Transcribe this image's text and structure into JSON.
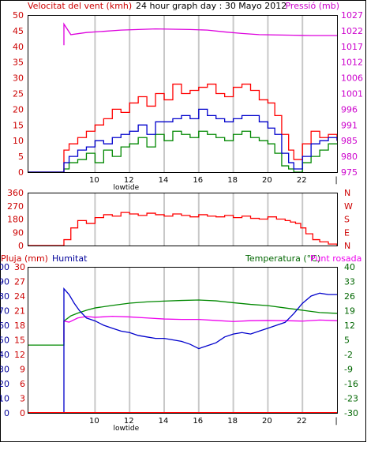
{
  "colors": {
    "wind_axis": "#cc0000",
    "pressure_axis": "#cc00cc",
    "rain_axis": "#cc0000",
    "humidity_axis": "#000099",
    "temp_axis": "#006600",
    "grid": "#c8c8c8",
    "frame": "#000000",
    "gust": "#ff0000",
    "avg_wind": "#0000cc",
    "min_wind": "#008800",
    "pressure": "#dd00dd",
    "direction": "#ff0000",
    "humidity": "#0000cc",
    "temperature": "#008800",
    "dewpoint": "#ee00ee",
    "rain": "#ff0000"
  },
  "chart_data": [
    {
      "id": "wind_pressure",
      "type": "line",
      "title": "24 hour graph day : 30 Mayo 2012",
      "ylabel_left": "Velocitat del vent (kmh)",
      "ylabel_right": "Pressió (mb)",
      "xlabel": "lowtide",
      "x_ticks": [
        "10",
        "12",
        "14",
        "16",
        "18",
        "20",
        "22",
        "|"
      ],
      "x_range": [
        6.1,
        24
      ],
      "ylim_left": [
        0,
        50
      ],
      "y_ticks_left": [
        "0",
        "5",
        "10",
        "15",
        "20",
        "25",
        "30",
        "35",
        "40",
        "45",
        "50"
      ],
      "ylim_right": [
        975,
        1027
      ],
      "y_ticks_right": [
        "975",
        "980",
        "985",
        "991",
        "996",
        "1001",
        "1006",
        "1012",
        "1017",
        "1022",
        "1027"
      ],
      "grid": true,
      "series": [
        {
          "name": "Ratxa",
          "axis": "left",
          "x": [
            6.1,
            8.2,
            8.2,
            8.5,
            9.0,
            9.5,
            10.0,
            10.5,
            11.0,
            11.5,
            12.0,
            12.5,
            13.0,
            13.5,
            14.0,
            14.5,
            15.0,
            15.5,
            16.0,
            16.5,
            17.0,
            17.5,
            18.0,
            18.5,
            19.0,
            19.5,
            20.0,
            20.4,
            20.8,
            21.2,
            21.5,
            22.0,
            22.5,
            23.0,
            23.5,
            24.0
          ],
          "values": [
            0,
            0,
            7,
            9,
            11,
            13,
            15,
            17,
            20,
            19,
            22,
            24,
            21,
            25,
            23,
            28,
            25,
            26,
            27,
            28,
            25,
            24,
            27,
            28,
            26,
            23,
            22,
            18,
            12,
            7,
            4,
            9,
            13,
            11,
            12,
            10
          ]
        },
        {
          "name": "Vent mitjà",
          "axis": "left",
          "x": [
            6.1,
            8.2,
            8.2,
            8.5,
            9.0,
            9.5,
            10.0,
            10.5,
            11.0,
            11.5,
            12.0,
            12.5,
            13.0,
            13.5,
            14.0,
            14.5,
            15.0,
            15.5,
            16.0,
            16.5,
            17.0,
            17.5,
            18.0,
            18.5,
            19.0,
            19.5,
            20.0,
            20.4,
            20.8,
            21.2,
            21.5,
            22.0,
            22.5,
            23.0,
            23.5,
            24.0
          ],
          "values": [
            0,
            0,
            3,
            5,
            7,
            8,
            10,
            9,
            11,
            12,
            13,
            15,
            12,
            16,
            16,
            17,
            18,
            17,
            20,
            18,
            17,
            16,
            17,
            18,
            18,
            16,
            14,
            12,
            6,
            3,
            1,
            5,
            9,
            10,
            11,
            10
          ]
        },
        {
          "name": "Vent mínim",
          "axis": "left",
          "x": [
            6.1,
            8.2,
            8.2,
            8.5,
            9.0,
            9.5,
            10.0,
            10.5,
            11.0,
            11.5,
            12.0,
            12.5,
            13.0,
            13.5,
            14.0,
            14.5,
            15.0,
            15.5,
            16.0,
            16.5,
            17.0,
            17.5,
            18.0,
            18.5,
            19.0,
            19.5,
            20.0,
            20.4,
            20.8,
            21.2,
            21.5,
            22.0,
            22.5,
            23.0,
            23.5,
            24.0
          ],
          "values": [
            0,
            0,
            1,
            3,
            4,
            6,
            3,
            7,
            5,
            8,
            9,
            11,
            8,
            12,
            10,
            13,
            12,
            11,
            13,
            12,
            11,
            10,
            12,
            13,
            11,
            10,
            9,
            6,
            2,
            1,
            0,
            3,
            5,
            7,
            9,
            9
          ]
        },
        {
          "name": "Pressió",
          "axis": "right",
          "x": [
            8.2,
            8.2,
            8.6,
            9.5,
            10.5,
            11.5,
            12.5,
            13.5,
            14.5,
            15.5,
            16.5,
            17.5,
            18.5,
            19.5,
            20.5,
            21.5,
            22.5,
            23.5,
            24.0
          ],
          "values": [
            1017,
            1024,
            1020.5,
            1021.2,
            1021.6,
            1022,
            1022.2,
            1022.4,
            1022.3,
            1022.2,
            1022,
            1021.4,
            1020.9,
            1020.5,
            1020.4,
            1020.3,
            1020.2,
            1020.2,
            1020.2
          ]
        }
      ]
    },
    {
      "id": "wind_direction",
      "type": "line",
      "title": "",
      "x_ticks": [
        "10",
        "12",
        "14",
        "16",
        "18",
        "20",
        "22",
        "|"
      ],
      "x_range": [
        6.1,
        24
      ],
      "ylim": [
        0,
        360
      ],
      "y_ticks": [
        "0",
        "90",
        "180",
        "270",
        "360"
      ],
      "y_ticks_right": [
        "N",
        "E",
        "S",
        "W",
        "N"
      ],
      "grid": true,
      "series": [
        {
          "name": "Direcció",
          "x": [
            6.1,
            8.2,
            8.2,
            8.6,
            9.0,
            9.5,
            10.0,
            10.5,
            11.0,
            11.5,
            12.0,
            12.5,
            13.0,
            13.5,
            14.0,
            14.5,
            15.0,
            15.5,
            16.0,
            16.5,
            17.0,
            17.5,
            18.0,
            18.5,
            19.0,
            19.5,
            20.0,
            20.5,
            21.0,
            21.3,
            21.6,
            21.9,
            22.2,
            22.6,
            23.0,
            23.5,
            24.0
          ],
          "values": [
            0,
            0,
            40,
            120,
            170,
            150,
            190,
            210,
            200,
            225,
            215,
            205,
            220,
            210,
            200,
            215,
            205,
            195,
            210,
            200,
            195,
            205,
            190,
            200,
            185,
            180,
            195,
            180,
            170,
            160,
            150,
            120,
            80,
            40,
            25,
            10,
            0
          ]
        }
      ]
    },
    {
      "id": "temp_humidity",
      "type": "line",
      "title": "",
      "legend": [
        "Pluja (mm)",
        "Humitat",
        "Temperatura (°C)",
        "Punt rosada"
      ],
      "xlabel": "lowtide",
      "x_ticks": [
        "10",
        "12",
        "14",
        "16",
        "18",
        "20",
        "22",
        "|"
      ],
      "x_range": [
        6.1,
        24
      ],
      "ylim_humidity": [
        0,
        100
      ],
      "y_ticks_humidity": [
        "0",
        "10",
        "20",
        "30",
        "40",
        "50",
        "60",
        "70",
        "80",
        "90",
        "100"
      ],
      "ylim_rain": [
        0,
        30
      ],
      "y_ticks_rain": [
        "0",
        "3",
        "6",
        "9",
        "12",
        "15",
        "18",
        "21",
        "24",
        "27",
        "30"
      ],
      "ylim_temp": [
        -30,
        40
      ],
      "y_ticks_temp": [
        "-30",
        "-23",
        "-16",
        "-9",
        "-2",
        "5",
        "12",
        "19",
        "26",
        "33",
        "40"
      ],
      "grid": true,
      "series": [
        {
          "name": "Pluja (mm)",
          "axis": "rain",
          "x": [
            6.1,
            24
          ],
          "values": [
            0,
            0
          ]
        },
        {
          "name": "Humitat",
          "axis": "humidity",
          "x": [
            8.2,
            8.2,
            8.5,
            8.8,
            9.1,
            9.5,
            10.0,
            10.5,
            11.0,
            11.5,
            12.0,
            12.5,
            13.0,
            13.5,
            14.0,
            14.5,
            15.0,
            15.5,
            16.0,
            16.5,
            17.0,
            17.5,
            18.0,
            18.5,
            19.0,
            19.5,
            20.0,
            20.5,
            21.0,
            21.5,
            22.0,
            22.5,
            23.0,
            23.5,
            24.0
          ],
          "values": [
            0,
            85,
            81,
            75,
            70,
            65,
            63,
            60,
            58,
            56,
            55,
            53,
            52,
            51,
            51,
            50,
            49,
            47,
            44,
            46,
            48,
            52,
            54,
            55,
            54,
            56,
            58,
            60,
            62,
            68,
            75,
            80,
            82,
            81,
            81
          ]
        },
        {
          "name": "Temperatura (°C)",
          "axis": "temp",
          "x": [
            6.1,
            8.2,
            8.2,
            8.6,
            9.0,
            9.5,
            10.0,
            11.0,
            12.0,
            13.0,
            14.0,
            15.0,
            16.0,
            17.0,
            18.0,
            19.0,
            20.0,
            21.0,
            22.0,
            23.0,
            24.0
          ],
          "values": [
            2.5,
            2.5,
            14,
            16.5,
            17.8,
            19.2,
            20.3,
            21.5,
            22.6,
            23.2,
            23.6,
            23.9,
            24.1,
            23.7,
            22.8,
            22,
            21.4,
            20.3,
            19.2,
            18.1,
            17.7
          ]
        },
        {
          "name": "Punt rosada",
          "axis": "temp",
          "x": [
            8.2,
            8.2,
            8.5,
            9.0,
            9.5,
            10.0,
            11.0,
            12.0,
            13.0,
            14.0,
            15.0,
            16.0,
            17.0,
            18.0,
            19.0,
            20.0,
            21.0,
            22.0,
            23.0,
            24.0
          ],
          "values": [
            4,
            14,
            13.5,
            15.5,
            16.2,
            15.8,
            16.3,
            16.0,
            15.5,
            15.0,
            14.8,
            14.8,
            14.3,
            13.8,
            14.2,
            14.3,
            14.2,
            14.0,
            14.5,
            14.2
          ]
        }
      ]
    }
  ]
}
